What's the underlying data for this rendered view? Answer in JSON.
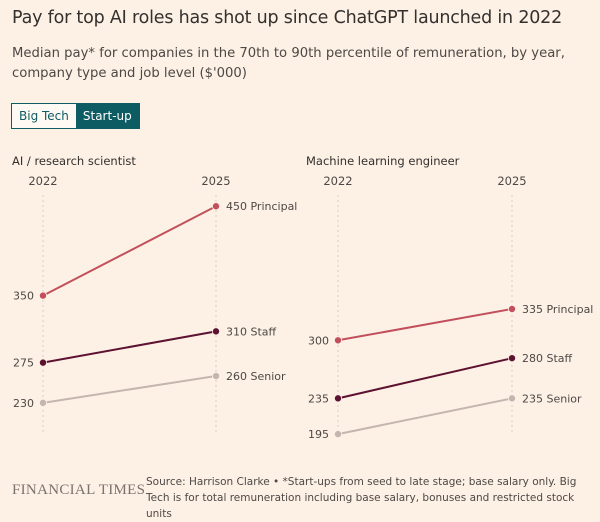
{
  "title": "Pay for top AI roles has shot up since ChatGPT launched in 2022",
  "subtitle": "Median pay* for companies in the 70th to 90th percentile of remuneration, by year, company type and job level ($'000)",
  "toggle": {
    "options": [
      "Big Tech",
      "Start-up"
    ],
    "selected": "Start-up"
  },
  "colors": {
    "Principal": "#c2505c",
    "Staff": "#5c1230",
    "Senior": "#c4b6ae",
    "accent": "#0d5c63",
    "background": "#fdf1e6"
  },
  "chart_data": [
    {
      "type": "slope",
      "title": "AI / research scientist",
      "categories": [
        "2022",
        "2025"
      ],
      "ylim": [
        194,
        476
      ],
      "grid": false,
      "series": [
        {
          "name": "Principal",
          "values": [
            350,
            450
          ],
          "labels": [
            "350",
            "450 Principal"
          ]
        },
        {
          "name": "Staff",
          "values": [
            275,
            310
          ],
          "labels": [
            "275",
            "310 Staff"
          ]
        },
        {
          "name": "Senior",
          "values": [
            230,
            260
          ],
          "labels": [
            "230",
            "260 Senior"
          ]
        }
      ]
    },
    {
      "type": "slope",
      "title": "Machine learning engineer",
      "categories": [
        "2022",
        "2025"
      ],
      "ylim": [
        194,
        476
      ],
      "grid": false,
      "series": [
        {
          "name": "Principal",
          "values": [
            300,
            335
          ],
          "labels": [
            "300",
            "335 Principal"
          ]
        },
        {
          "name": "Staff",
          "values": [
            235,
            280
          ],
          "labels": [
            "235",
            "280 Staff"
          ]
        },
        {
          "name": "Senior",
          "values": [
            195,
            235
          ],
          "labels": [
            "195",
            "235 Senior"
          ]
        }
      ]
    }
  ],
  "footer": {
    "logo": "FINANCIAL TIMES",
    "note": "Source: Harrison Clarke • *Start-ups from seed to late stage; base salary only. Big Tech is for total remuneration including base salary, bonuses and restricted stock units"
  }
}
